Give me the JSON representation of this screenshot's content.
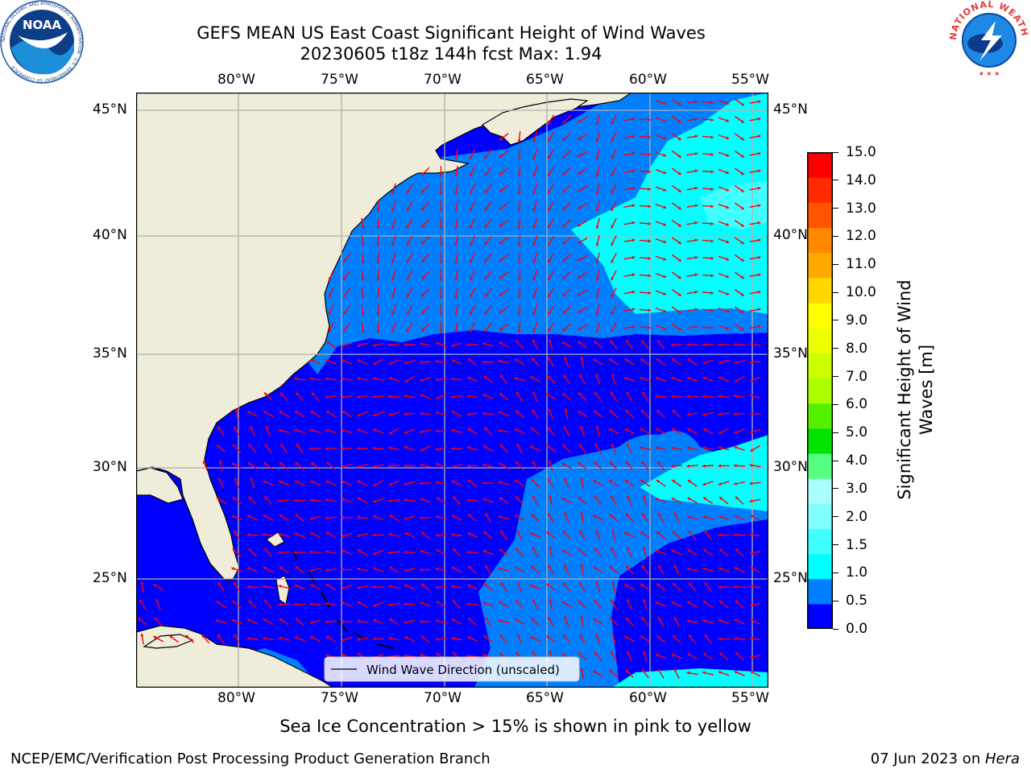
{
  "header": {
    "title_line1": "GEFS MEAN US East Coast Significant Height of Wind Waves",
    "title_line2": "20230605 t18z 144h fcst   Max: 1.94"
  },
  "logos": {
    "noaa_text": "NOAA",
    "noaa_ring_text": "NATIONAL OCEANIC AND ATMOSPHERIC ADMINISTRATION · U.S. DEPARTMENT OF COMMERCE",
    "nws_ring_text": "NATIONAL WEATHER SERVICE"
  },
  "map": {
    "lon_labels": [
      "80°W",
      "75°W",
      "70°W",
      "65°W",
      "60°W",
      "55°W"
    ],
    "lat_labels": [
      "45°N",
      "40°N",
      "35°N",
      "30°N",
      "25°N"
    ],
    "legend_label": "Wind Wave Direction (unscaled)",
    "land_color": "#efedda",
    "arrow_color": "#ff0000",
    "grid_color": "#b0b0b0"
  },
  "colorbar": {
    "label": "Significant Height of Wind Waves [m]",
    "ticks": [
      "15.0",
      "14.0",
      "13.0",
      "12.0",
      "11.0",
      "10.0",
      "9.0",
      "8.0",
      "7.0",
      "6.0",
      "5.0",
      "4.0",
      "3.0",
      "2.0",
      "1.5",
      "1.0",
      "0.5",
      "0.0"
    ],
    "colors": [
      "#0000ff",
      "#0080ff",
      "#00ffff",
      "#40ffff",
      "#80ffff",
      "#aaffff",
      "#55ff7f",
      "#00e400",
      "#55f000",
      "#aaff00",
      "#ccff00",
      "#eeff00",
      "#ffff00",
      "#ffd700",
      "#ffaa00",
      "#ff8800",
      "#ff5500",
      "#ff2a00",
      "#ff0000"
    ]
  },
  "footer": {
    "sea_ice_note": "Sea Ice Concentration > 15% is shown in pink to yellow",
    "branch": "NCEP/EMC/Verification Post Processing Product Generation Branch",
    "date": "07 Jun 2023 on ",
    "machine": "Hera"
  }
}
